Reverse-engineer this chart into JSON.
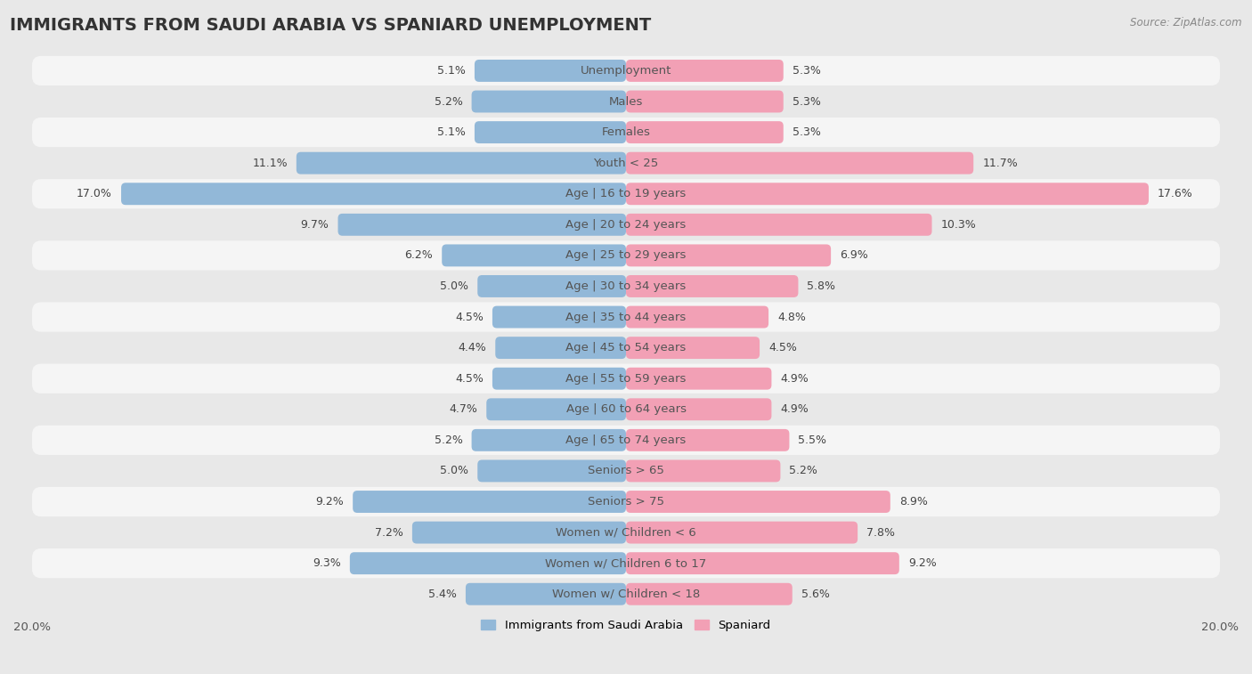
{
  "title": "IMMIGRANTS FROM SAUDI ARABIA VS SPANIARD UNEMPLOYMENT",
  "source": "Source: ZipAtlas.com",
  "categories": [
    "Unemployment",
    "Males",
    "Females",
    "Youth < 25",
    "Age | 16 to 19 years",
    "Age | 20 to 24 years",
    "Age | 25 to 29 years",
    "Age | 30 to 34 years",
    "Age | 35 to 44 years",
    "Age | 45 to 54 years",
    "Age | 55 to 59 years",
    "Age | 60 to 64 years",
    "Age | 65 to 74 years",
    "Seniors > 65",
    "Seniors > 75",
    "Women w/ Children < 6",
    "Women w/ Children 6 to 17",
    "Women w/ Children < 18"
  ],
  "left_values": [
    5.1,
    5.2,
    5.1,
    11.1,
    17.0,
    9.7,
    6.2,
    5.0,
    4.5,
    4.4,
    4.5,
    4.7,
    5.2,
    5.0,
    9.2,
    7.2,
    9.3,
    5.4
  ],
  "right_values": [
    5.3,
    5.3,
    5.3,
    11.7,
    17.6,
    10.3,
    6.9,
    5.8,
    4.8,
    4.5,
    4.9,
    4.9,
    5.5,
    5.2,
    8.9,
    7.8,
    9.2,
    5.6
  ],
  "left_color": "#92b8d8",
  "right_color": "#f2a0b5",
  "axis_max": 20.0,
  "background_color": "#e8e8e8",
  "row_color_odd": "#f2f2f2",
  "row_color_even": "#e0e0e0",
  "title_fontsize": 14,
  "label_fontsize": 9.5,
  "value_fontsize": 9,
  "legend_left": "Immigrants from Saudi Arabia",
  "legend_right": "Spaniard"
}
